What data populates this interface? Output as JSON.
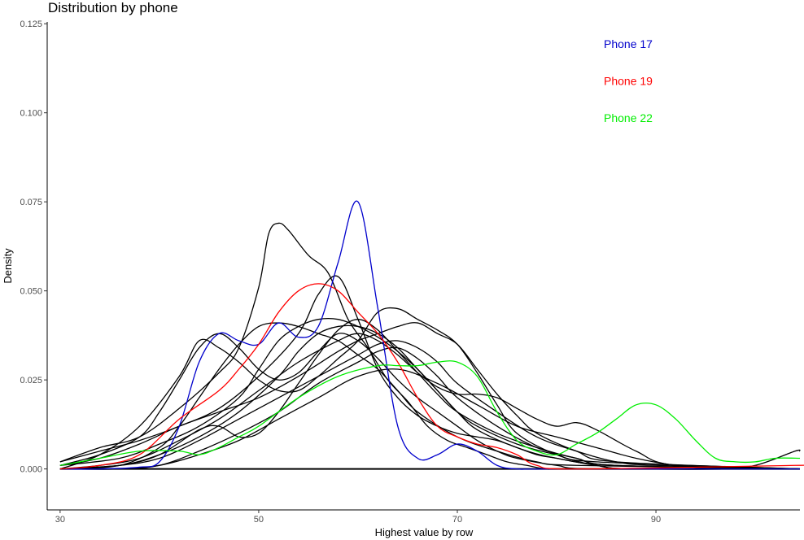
{
  "chart_data": {
    "type": "line",
    "title": "Distribution by phone",
    "xlabel": "Highest value by row",
    "ylabel": "Density",
    "xlim": [
      28.7,
      104.5
    ],
    "ylim": [
      -0.0115,
      0.1255
    ],
    "x_ticks": [
      30,
      50,
      70,
      90
    ],
    "x_tick_labels": [
      "30",
      "50",
      "70",
      "90"
    ],
    "y_ticks": [
      0.0,
      0.025,
      0.05,
      0.075,
      0.1,
      0.125
    ],
    "y_tick_labels": [
      "0.000",
      "0.025",
      "0.050",
      "0.075",
      "0.100",
      "0.125"
    ],
    "grid": false,
    "legend": {
      "placement": "top-right",
      "entries": [
        {
          "label": "Phone 17",
          "color": "#0000cc"
        },
        {
          "label": "Phone 19",
          "color": "#ff0000"
        },
        {
          "label": "Phone 22",
          "color": "#00ee00"
        }
      ]
    },
    "series": [
      {
        "color": "#0000cc",
        "x": [
          30,
          34,
          38,
          40,
          42,
          44,
          46,
          48,
          50,
          52,
          54,
          56,
          58,
          60,
          62,
          64,
          66,
          68,
          70,
          72,
          74,
          76,
          80,
          104.5
        ],
        "y": [
          0.0,
          0.0,
          0.0005,
          0.002,
          0.012,
          0.03,
          0.038,
          0.036,
          0.035,
          0.041,
          0.037,
          0.04,
          0.058,
          0.075,
          0.045,
          0.012,
          0.003,
          0.004,
          0.007,
          0.005,
          0.001,
          0.0,
          0.0,
          0.0
        ]
      },
      {
        "color": "#ff0000",
        "x": [
          30,
          34,
          38,
          42,
          46,
          48,
          50,
          52,
          54,
          56,
          58,
          60,
          62,
          64,
          66,
          68,
          70,
          72,
          74,
          76,
          78,
          82,
          104,
          104.5
        ],
        "y": [
          0.0,
          0.001,
          0.004,
          0.014,
          0.022,
          0.028,
          0.035,
          0.044,
          0.05,
          0.052,
          0.05,
          0.044,
          0.038,
          0.03,
          0.02,
          0.012,
          0.009,
          0.007,
          0.006,
          0.004,
          0.001,
          0.0,
          0.001,
          0.001
        ]
      },
      {
        "color": "#00ee00",
        "x": [
          30,
          34,
          38,
          42,
          44,
          46,
          48,
          50,
          54,
          58,
          62,
          64,
          66,
          68,
          70,
          72,
          74,
          76,
          78,
          80,
          82,
          84,
          86,
          88,
          90,
          92,
          94,
          96,
          98,
          100,
          102,
          104.5
        ],
        "y": [
          0.001,
          0.003,
          0.005,
          0.005,
          0.004,
          0.006,
          0.009,
          0.012,
          0.02,
          0.026,
          0.029,
          0.029,
          0.029,
          0.03,
          0.03,
          0.026,
          0.016,
          0.008,
          0.005,
          0.004,
          0.007,
          0.01,
          0.014,
          0.018,
          0.018,
          0.014,
          0.008,
          0.003,
          0.002,
          0.002,
          0.003,
          0.003
        ]
      },
      {
        "color": "#000000",
        "x": [
          30,
          34,
          38,
          42,
          46,
          48,
          50,
          51,
          52,
          53,
          55,
          57,
          59,
          61,
          63,
          65,
          67,
          69,
          71,
          73,
          75,
          77,
          79,
          82,
          104.5
        ],
        "y": [
          0.002,
          0.006,
          0.009,
          0.017,
          0.027,
          0.034,
          0.051,
          0.066,
          0.069,
          0.067,
          0.06,
          0.055,
          0.042,
          0.034,
          0.025,
          0.019,
          0.012,
          0.008,
          0.006,
          0.004,
          0.002,
          0.001,
          0.0,
          0.0,
          0.0
        ]
      },
      {
        "color": "#000000",
        "x": [
          30,
          34,
          38,
          42,
          46,
          50,
          54,
          56,
          58,
          60,
          62,
          64,
          66,
          68,
          70,
          72,
          74,
          76,
          78,
          80,
          84,
          88,
          104.5
        ],
        "y": [
          0.002,
          0.005,
          0.008,
          0.012,
          0.017,
          0.026,
          0.038,
          0.049,
          0.054,
          0.042,
          0.028,
          0.02,
          0.015,
          0.012,
          0.01,
          0.009,
          0.008,
          0.006,
          0.004,
          0.003,
          0.001,
          0.0,
          0.0
        ]
      },
      {
        "color": "#000000",
        "x": [
          30,
          34,
          38,
          42,
          44,
          46,
          48,
          50,
          52,
          54,
          56,
          58,
          60,
          62,
          64,
          66,
          68,
          70,
          72,
          74,
          76,
          80,
          84,
          88,
          104.5
        ],
        "y": [
          0.0,
          0.004,
          0.012,
          0.026,
          0.036,
          0.034,
          0.03,
          0.025,
          0.022,
          0.022,
          0.026,
          0.031,
          0.036,
          0.044,
          0.045,
          0.042,
          0.039,
          0.035,
          0.027,
          0.018,
          0.01,
          0.004,
          0.001,
          0.0,
          0.0
        ]
      },
      {
        "color": "#000000",
        "x": [
          30,
          34,
          38,
          42,
          46,
          50,
          54,
          58,
          60,
          62,
          64,
          66,
          68,
          70,
          72,
          74,
          76,
          78,
          82,
          86,
          104.5
        ],
        "y": [
          0.001,
          0.003,
          0.007,
          0.012,
          0.016,
          0.02,
          0.026,
          0.033,
          0.036,
          0.038,
          0.04,
          0.041,
          0.038,
          0.035,
          0.028,
          0.021,
          0.015,
          0.01,
          0.005,
          0.002,
          0.0
        ]
      },
      {
        "color": "#000000",
        "x": [
          30,
          34,
          38,
          42,
          46,
          50,
          54,
          58,
          60,
          62,
          64,
          66,
          68,
          70,
          72,
          74,
          76,
          78,
          80,
          82,
          84,
          88,
          92,
          104.5
        ],
        "y": [
          0.0,
          0.001,
          0.003,
          0.008,
          0.014,
          0.022,
          0.03,
          0.036,
          0.038,
          0.036,
          0.032,
          0.027,
          0.023,
          0.021,
          0.021,
          0.02,
          0.017,
          0.014,
          0.012,
          0.013,
          0.011,
          0.005,
          0.001,
          0.0
        ]
      },
      {
        "color": "#000000",
        "x": [
          30,
          34,
          38,
          40,
          42,
          44,
          46,
          48,
          50,
          52,
          54,
          56,
          58,
          60,
          62,
          64,
          66,
          68,
          70,
          72,
          74,
          76,
          80,
          84,
          104.5
        ],
        "y": [
          0.001,
          0.004,
          0.009,
          0.016,
          0.025,
          0.034,
          0.038,
          0.034,
          0.028,
          0.025,
          0.027,
          0.033,
          0.038,
          0.036,
          0.031,
          0.025,
          0.02,
          0.016,
          0.012,
          0.008,
          0.005,
          0.003,
          0.001,
          0.0,
          0.0
        ]
      },
      {
        "color": "#000000",
        "x": [
          30,
          36,
          40,
          44,
          48,
          50,
          52,
          54,
          56,
          58,
          60,
          62,
          64,
          66,
          68,
          70,
          72,
          76,
          80,
          86,
          104.5
        ],
        "y": [
          0.001,
          0.003,
          0.007,
          0.012,
          0.02,
          0.028,
          0.036,
          0.04,
          0.042,
          0.042,
          0.04,
          0.037,
          0.033,
          0.028,
          0.022,
          0.016,
          0.011,
          0.006,
          0.003,
          0.001,
          0.0
        ]
      },
      {
        "color": "#000000",
        "x": [
          30,
          36,
          40,
          44,
          46,
          48,
          50,
          52,
          54,
          56,
          58,
          60,
          62,
          64,
          66,
          68,
          70,
          74,
          78,
          82,
          86,
          104.5
        ],
        "y": [
          0.0,
          0.001,
          0.004,
          0.011,
          0.012,
          0.009,
          0.01,
          0.016,
          0.024,
          0.032,
          0.039,
          0.042,
          0.039,
          0.033,
          0.027,
          0.021,
          0.016,
          0.01,
          0.006,
          0.003,
          0.001,
          0.0
        ]
      },
      {
        "color": "#000000",
        "x": [
          30,
          36,
          40,
          44,
          48,
          52,
          54,
          56,
          58,
          60,
          62,
          64,
          66,
          68,
          70,
          72,
          76,
          80,
          84,
          104.5
        ],
        "y": [
          0.0,
          0.001,
          0.004,
          0.009,
          0.016,
          0.026,
          0.033,
          0.038,
          0.04,
          0.04,
          0.038,
          0.034,
          0.028,
          0.022,
          0.016,
          0.012,
          0.007,
          0.004,
          0.002,
          0.0
        ]
      },
      {
        "color": "#000000",
        "x": [
          30,
          36,
          40,
          42,
          44,
          46,
          48,
          50,
          52,
          54,
          56,
          58,
          60,
          62,
          64,
          66,
          70,
          74,
          78,
          82,
          104.5
        ],
        "y": [
          0.0,
          0.001,
          0.006,
          0.012,
          0.02,
          0.028,
          0.035,
          0.04,
          0.041,
          0.04,
          0.038,
          0.036,
          0.032,
          0.028,
          0.022,
          0.016,
          0.009,
          0.005,
          0.002,
          0.001,
          0.0
        ]
      },
      {
        "color": "#000000",
        "x": [
          30,
          36,
          40,
          44,
          48,
          52,
          56,
          60,
          62,
          64,
          66,
          68,
          70,
          74,
          78,
          82,
          86,
          90,
          104.5
        ],
        "y": [
          0.0,
          0.001,
          0.003,
          0.008,
          0.014,
          0.02,
          0.026,
          0.032,
          0.035,
          0.036,
          0.034,
          0.03,
          0.024,
          0.016,
          0.009,
          0.005,
          0.002,
          0.001,
          0.0
        ]
      },
      {
        "color": "#000000",
        "x": [
          30,
          36,
          40,
          44,
          48,
          52,
          56,
          60,
          62,
          64,
          66,
          68,
          70,
          74,
          78,
          82,
          86,
          104.5
        ],
        "y": [
          0.0,
          0.0,
          0.001,
          0.005,
          0.01,
          0.016,
          0.024,
          0.03,
          0.033,
          0.034,
          0.031,
          0.026,
          0.02,
          0.012,
          0.006,
          0.003,
          0.001,
          0.0
        ]
      },
      {
        "color": "#000000",
        "x": [
          30,
          36,
          40,
          44,
          48,
          52,
          56,
          60,
          64,
          68,
          72,
          76,
          80,
          84,
          88,
          92,
          96,
          100,
          104,
          104.5
        ],
        "y": [
          0.0,
          0.0,
          0.001,
          0.004,
          0.008,
          0.014,
          0.02,
          0.026,
          0.028,
          0.024,
          0.018,
          0.012,
          0.009,
          0.006,
          0.003,
          0.001,
          0.0,
          0.001,
          0.005,
          0.005
        ]
      },
      {
        "color": "#000000",
        "x": [
          30,
          104.5
        ],
        "y": [
          0.0,
          0.0
        ]
      }
    ]
  }
}
